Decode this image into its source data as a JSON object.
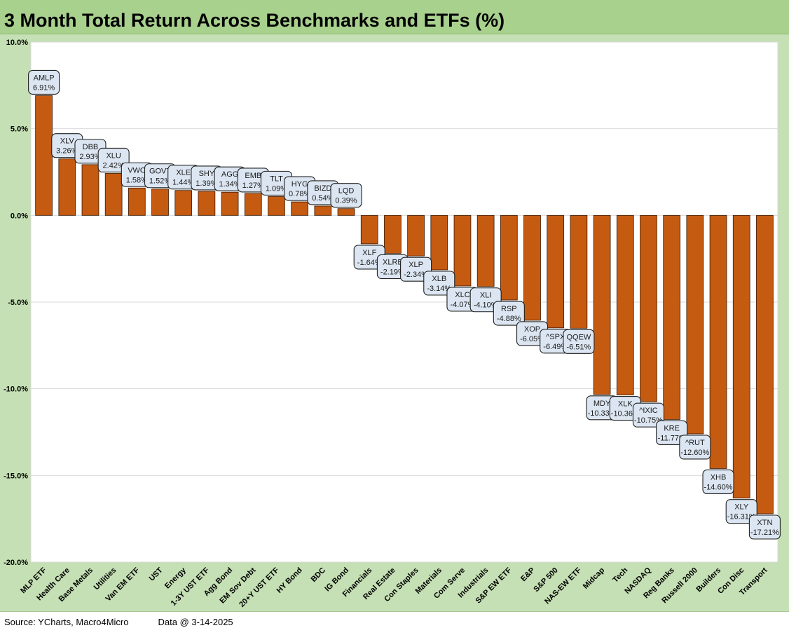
{
  "title": "3 Month Total Return Across Benchmarks and ETFs (%)",
  "footer": {
    "source": "Source: YCharts, Macro4Micro",
    "data_date": "Data @ 3-14-2025"
  },
  "colors": {
    "bar": "#c55a11",
    "bar_outline": "#3a1a05",
    "frame": "#c5e0b4",
    "title_bar": "#a9d18e",
    "label_fill": "#dce6f2",
    "label_stroke": "#1f1f1f"
  },
  "chart_data": {
    "type": "bar",
    "title": "3 Month Total Return Across Benchmarks and ETFs (%)",
    "ylim": [
      -20,
      10
    ],
    "yticks": [
      10,
      5,
      0,
      -5,
      -10,
      -15,
      -20
    ],
    "ytick_labels": [
      "10.0%",
      "5.0%",
      "0.0%",
      "-5.0%",
      "-10.0%",
      "-15.0%",
      "-20.0%"
    ],
    "grid": true,
    "categories": [
      "MLP ETF",
      "Health Care",
      "Base Metals",
      "Utilities",
      "Van EM ETF",
      "UST",
      "Energy",
      "1-3Y UST ETF",
      "Agg Bond",
      "EM Sov Debt",
      "20+Y UST ETF",
      "HY Bond",
      "BDC",
      "IG Bond",
      "Financials",
      "Real Estate",
      "Con Staples",
      "Materials",
      "Com Serve",
      "Industrials",
      "S&P EW ETF",
      "E&P",
      "S&P 500",
      "NAS-EW ETF",
      "Midcap",
      "Tech",
      "NASDAQ",
      "Reg Banks",
      "Russell 2000",
      "Builders",
      "Con Disc",
      "Transport"
    ],
    "tickers": [
      "AMLP",
      "XLV",
      "DBB",
      "XLU",
      "VWO",
      "GOVT",
      "XLE",
      "SHY",
      "AGG",
      "EMB",
      "TLT",
      "HYG",
      "BIZD",
      "LQD",
      "XLF",
      "XLRE",
      "XLP",
      "XLB",
      "XLC",
      "XLI",
      "RSP",
      "XOP",
      "^SPX",
      "QQEW",
      "MDY",
      "XLK",
      "^IXIC",
      "KRE",
      "^RUT",
      "XHB",
      "XLY",
      "XTN"
    ],
    "values": [
      6.91,
      3.26,
      2.93,
      2.42,
      1.58,
      1.52,
      1.44,
      1.39,
      1.34,
      1.27,
      1.09,
      0.78,
      0.54,
      0.39,
      -1.64,
      -2.19,
      -2.34,
      -3.14,
      -4.07,
      -4.1,
      -4.88,
      -6.05,
      -6.49,
      -6.51,
      -10.33,
      -10.36,
      -10.75,
      -11.77,
      -12.6,
      -14.6,
      -16.31,
      -17.21
    ],
    "value_labels": [
      "6.91%",
      "3.26%",
      "2.93%",
      "2.42%",
      "1.58%",
      "1.52%",
      "1.44%",
      "1.39%",
      "1.34%",
      "1.27%",
      "1.09%",
      "0.78%",
      "0.54%",
      "0.39%",
      "-1.64%",
      "-2.19%",
      "-2.34%",
      "-3.14%",
      "-4.07%",
      "-4.10%",
      "-4.88%",
      "-6.05%",
      "-6.49%",
      "-6.51%",
      "-10.33%",
      "-10.36%",
      "-10.75%",
      "-11.77%",
      "-12.60%",
      "-14.60%",
      "-16.31%",
      "-17.21%"
    ]
  }
}
